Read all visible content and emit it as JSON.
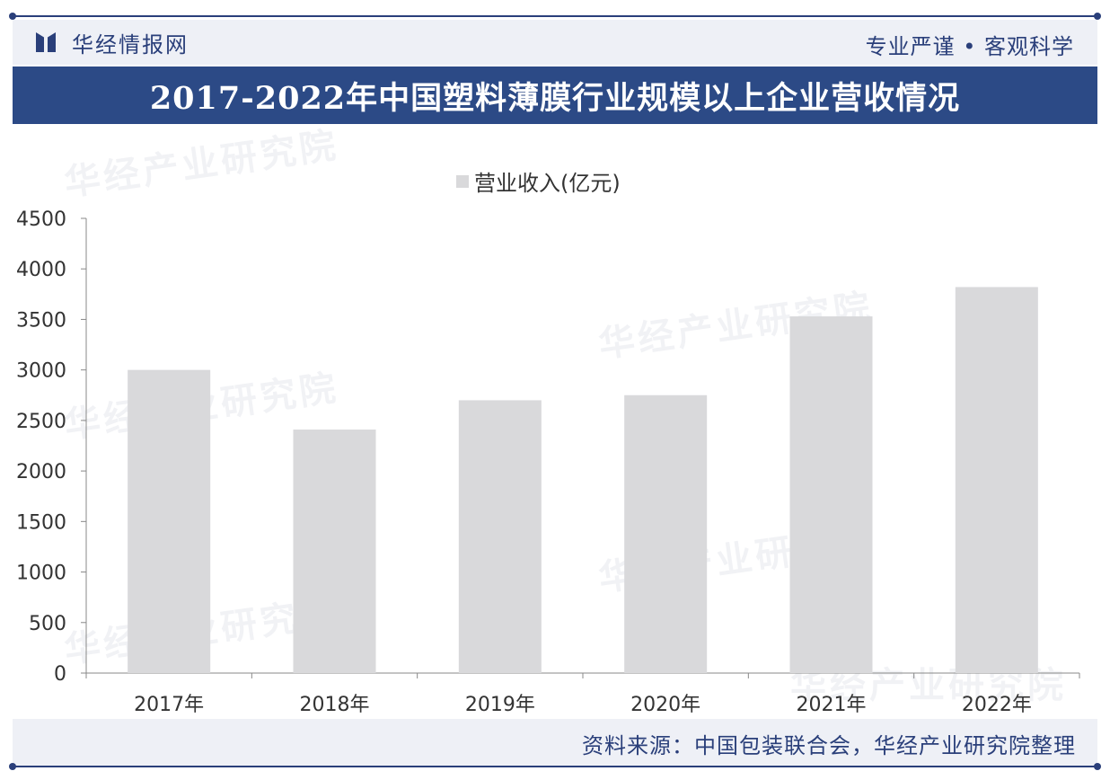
{
  "header": {
    "brand": "华经情报网",
    "slogan": "专业严谨 • 客观科学"
  },
  "watermark": "华经产业研究院",
  "chart_data": {
    "type": "bar",
    "title": "2017-2022年中国塑料薄膜行业规模以上企业营收情况",
    "categories": [
      "2017年",
      "2018年",
      "2019年",
      "2020年",
      "2021年",
      "2022年"
    ],
    "series": [
      {
        "name": "营业收入(亿元)",
        "values": [
          3000,
          2410,
          2700,
          2750,
          3530,
          3820
        ]
      }
    ],
    "ylim": [
      0,
      4500
    ],
    "yticks": [
      0,
      500,
      1000,
      1500,
      2000,
      2500,
      3000,
      3500,
      4000,
      4500
    ],
    "grid": false,
    "legend": "top-center",
    "bar_color": "#d9d9db"
  },
  "footer": {
    "source": "资料来源：中国包装联合会，华经产业研究院整理"
  },
  "colors": {
    "brand": "#2a3f7a",
    "title_bar": "#2c4a86",
    "bar": "#d9d9db"
  }
}
